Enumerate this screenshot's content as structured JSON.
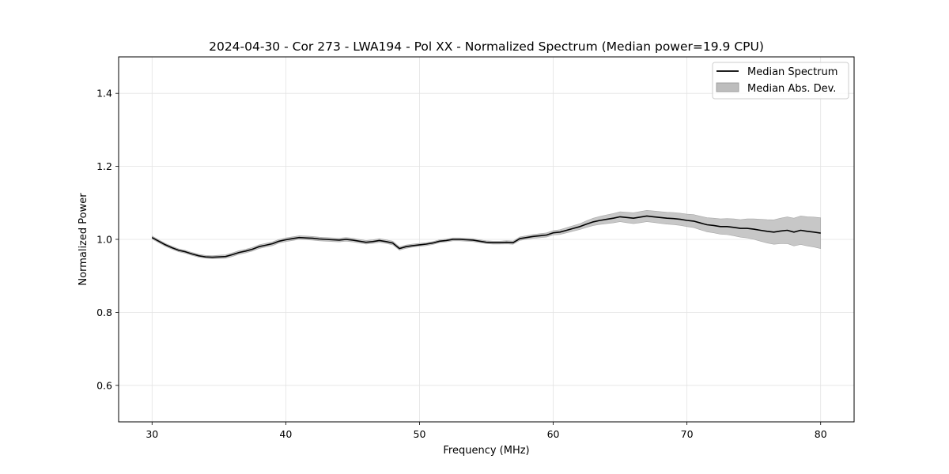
{
  "chart_data": {
    "type": "line",
    "title": "2024-04-30 - Cor 273 - LWA194 - Pol XX - Normalized Spectrum (Median power=19.9 CPU)",
    "xlabel": "Frequency (MHz)",
    "ylabel": "Normalized Power",
    "xlim": [
      27.5,
      82.5
    ],
    "ylim": [
      0.5,
      1.5
    ],
    "xticks": [
      30,
      40,
      50,
      60,
      70,
      80
    ],
    "yticks": [
      0.6,
      0.8,
      1.0,
      1.2,
      1.4
    ],
    "xtick_labels": [
      "30",
      "40",
      "50",
      "60",
      "70",
      "80"
    ],
    "ytick_labels": [
      "0.6",
      "0.8",
      "1.0",
      "1.2",
      "1.4"
    ],
    "grid": true,
    "legend_position": "top-right",
    "legend": [
      {
        "label": "Median Spectrum",
        "kind": "line",
        "color": "#000000"
      },
      {
        "label": "Median Abs. Dev.",
        "kind": "band",
        "color": "#bdbdbd"
      }
    ],
    "series": [
      {
        "name": "Median Spectrum",
        "x": [
          30,
          30.5,
          31,
          31.5,
          32,
          32.5,
          33,
          33.5,
          34,
          34.5,
          35,
          35.5,
          36,
          36.5,
          37,
          37.5,
          38,
          38.5,
          39,
          39.5,
          40,
          40.5,
          41,
          41.5,
          42,
          42.5,
          43,
          43.5,
          44,
          44.5,
          45,
          45.5,
          46,
          46.5,
          47,
          47.5,
          48,
          48.5,
          49,
          49.5,
          50,
          50.5,
          51,
          51.5,
          52,
          52.5,
          53,
          53.5,
          54,
          54.5,
          55,
          55.5,
          56,
          56.5,
          57,
          57.5,
          58,
          58.5,
          59,
          59.5,
          60,
          60.5,
          61,
          61.5,
          62,
          62.5,
          63,
          63.5,
          64,
          64.5,
          65,
          65.5,
          66,
          66.5,
          67,
          67.5,
          68,
          68.5,
          69,
          69.5,
          70,
          70.5,
          71,
          71.5,
          72,
          72.5,
          73,
          73.5,
          74,
          74.5,
          75,
          75.5,
          76,
          76.5,
          77,
          77.5,
          78,
          78.5,
          79,
          79.5,
          80
        ],
        "y": [
          1.005,
          0.995,
          0.985,
          0.977,
          0.97,
          0.966,
          0.96,
          0.955,
          0.952,
          0.951,
          0.952,
          0.953,
          0.958,
          0.964,
          0.968,
          0.973,
          0.98,
          0.984,
          0.988,
          0.995,
          0.999,
          1.002,
          1.005,
          1.004,
          1.003,
          1.001,
          1.0,
          0.999,
          0.998,
          1.0,
          0.998,
          0.995,
          0.992,
          0.994,
          0.997,
          0.994,
          0.99,
          0.975,
          0.98,
          0.983,
          0.985,
          0.987,
          0.99,
          0.995,
          0.997,
          1.0,
          1.0,
          0.999,
          0.998,
          0.995,
          0.992,
          0.991,
          0.991,
          0.992,
          0.991,
          1.002,
          1.005,
          1.008,
          1.01,
          1.012,
          1.018,
          1.02,
          1.025,
          1.03,
          1.035,
          1.042,
          1.048,
          1.052,
          1.055,
          1.058,
          1.062,
          1.06,
          1.058,
          1.061,
          1.064,
          1.062,
          1.06,
          1.058,
          1.057,
          1.055,
          1.052,
          1.05,
          1.045,
          1.04,
          1.038,
          1.035,
          1.035,
          1.033,
          1.03,
          1.03,
          1.028,
          1.025,
          1.022,
          1.02,
          1.023,
          1.025,
          1.02,
          1.025,
          1.022,
          1.02,
          1.017
        ]
      },
      {
        "name": "Median Abs. Dev.",
        "x": [
          30,
          32,
          34,
          36,
          38,
          40,
          42,
          44,
          46,
          48,
          50,
          52,
          54,
          56,
          58,
          60,
          62,
          64,
          66,
          68,
          70,
          72,
          74,
          76,
          78,
          80
        ],
        "half_width": [
          0.004,
          0.004,
          0.004,
          0.005,
          0.005,
          0.005,
          0.005,
          0.005,
          0.005,
          0.005,
          0.004,
          0.004,
          0.004,
          0.004,
          0.005,
          0.006,
          0.008,
          0.012,
          0.015,
          0.016,
          0.017,
          0.02,
          0.024,
          0.032,
          0.038,
          0.042
        ]
      }
    ]
  }
}
